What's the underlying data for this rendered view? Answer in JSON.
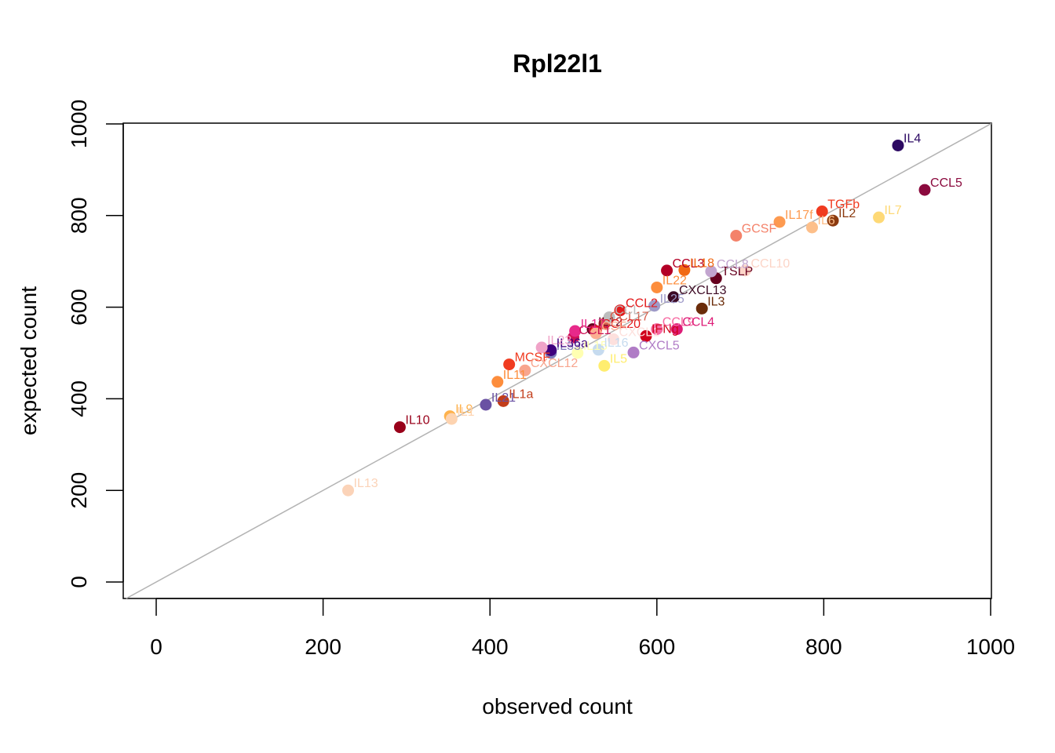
{
  "chart_data": {
    "type": "scatter",
    "title": "Rpl22l1",
    "xlabel": "observed count",
    "ylabel": "expected count",
    "xlim": [
      0,
      1000
    ],
    "ylim": [
      0,
      1000
    ],
    "xticks": [
      0,
      200,
      400,
      600,
      800,
      1000
    ],
    "yticks": [
      0,
      200,
      400,
      600,
      800,
      1000
    ],
    "reference_line": "y = x",
    "reference_line_color": "#b3b3b3",
    "legend": "none",
    "grid": false,
    "points": [
      {
        "label": "IL4",
        "x": 889,
        "y": 953,
        "color": "#2d0a63"
      },
      {
        "label": "CCL5",
        "x": 921,
        "y": 856,
        "color": "#8b0a3e"
      },
      {
        "label": "TGFb",
        "x": 798,
        "y": 809,
        "color": "#f03b20"
      },
      {
        "label": "IL2",
        "x": 811,
        "y": 789,
        "color": "#8b3a0f"
      },
      {
        "label": "IL7",
        "x": 866,
        "y": 796,
        "color": "#fed976"
      },
      {
        "label": "IL17f",
        "x": 747,
        "y": 786,
        "color": "#fd9a50"
      },
      {
        "label": "IL6",
        "x": 786,
        "y": 774,
        "color": "#fdbf8a"
      },
      {
        "label": "GCSF",
        "x": 695,
        "y": 756,
        "color": "#f4826a"
      },
      {
        "label": "IL10",
        "x": 292,
        "y": 338,
        "color": "#99001a"
      },
      {
        "label": "IL13",
        "x": 230,
        "y": 200,
        "color": "#fbd3b8"
      },
      {
        "label": "IL9",
        "x": 352,
        "y": 362,
        "color": "#feb24c"
      },
      {
        "label": "IL1",
        "x": 354,
        "y": 356,
        "color": "#fdd3b0"
      },
      {
        "label": "IL21",
        "x": 395,
        "y": 387,
        "color": "#6a51a3"
      },
      {
        "label": "IL1a",
        "x": 416,
        "y": 395,
        "color": "#c23d1a"
      },
      {
        "label": "IL11",
        "x": 409,
        "y": 437,
        "color": "#fd8d3c"
      },
      {
        "label": "MCSF",
        "x": 423,
        "y": 475,
        "color": "#f03b20"
      },
      {
        "label": "CXCL12",
        "x": 442,
        "y": 462,
        "color": "#f8a58e"
      },
      {
        "label": "IL33",
        "x": 473,
        "y": 500,
        "color": "#807dba"
      },
      {
        "label": "IL36a",
        "x": 473,
        "y": 506,
        "color": "#3f007d"
      },
      {
        "label": "IL15",
        "x": 505,
        "y": 500,
        "color": "#ffffb2"
      },
      {
        "label": "IL12",
        "x": 523,
        "y": 552,
        "color": "#67001f"
      },
      {
        "label": "CCL17",
        "x": 537,
        "y": 564,
        "color": "#d6604d"
      },
      {
        "label": "CCL20",
        "x": 527,
        "y": 548,
        "color": "#e31a1c"
      },
      {
        "label": "CSF",
        "x": 527,
        "y": 543,
        "color": "#fcae91"
      },
      {
        "label": "IL16",
        "x": 530,
        "y": 507,
        "color": "#c6dbef"
      },
      {
        "label": "CCL1",
        "x": 500,
        "y": 534,
        "color": "#ce1256"
      },
      {
        "label": "CCL",
        "x": 543,
        "y": 578,
        "color": "#bdbdbd"
      },
      {
        "label": "IL5",
        "x": 537,
        "y": 472,
        "color": "#ffed6f"
      },
      {
        "label": "CCL2",
        "x": 556,
        "y": 593,
        "color": "#e31a1c"
      },
      {
        "label": "CXCL1",
        "x": 548,
        "y": 530,
        "color": "#fde0dd"
      },
      {
        "label": "IL25",
        "x": 597,
        "y": 603,
        "color": "#9e9ac8"
      },
      {
        "label": "IL22",
        "x": 600,
        "y": 643,
        "color": "#fd8d3c"
      },
      {
        "label": "CCL3",
        "x": 612,
        "y": 680,
        "color": "#b30026"
      },
      {
        "label": "IL18",
        "x": 633,
        "y": 681,
        "color": "#f16913"
      },
      {
        "label": "CXCL13",
        "x": 620,
        "y": 622,
        "color": "#3d0a24"
      },
      {
        "label": "TSLP",
        "x": 671,
        "y": 663,
        "color": "#67001f"
      },
      {
        "label": "CCL8",
        "x": 665,
        "y": 678,
        "color": "#c2a5cf"
      },
      {
        "label": "IL3",
        "x": 654,
        "y": 597,
        "color": "#6b2c0a"
      },
      {
        "label": "IFNg",
        "x": 587,
        "y": 537,
        "color": "#d0021b"
      },
      {
        "label": "CCL9",
        "x": 600,
        "y": 552,
        "color": "#f768a1"
      },
      {
        "label": "CCL4",
        "x": 624,
        "y": 552,
        "color": "#dd1c77"
      },
      {
        "label": "CXCL5",
        "x": 572,
        "y": 501,
        "color": "#b07cc6"
      },
      {
        "label": "IL17",
        "x": 502,
        "y": 548,
        "color": "#e7298a"
      },
      {
        "label": "IL23",
        "x": 462,
        "y": 512,
        "color": "#f0a3c8"
      },
      {
        "label": "CCL10",
        "x": 706,
        "y": 680,
        "color": "#fcd5c8"
      }
    ]
  }
}
